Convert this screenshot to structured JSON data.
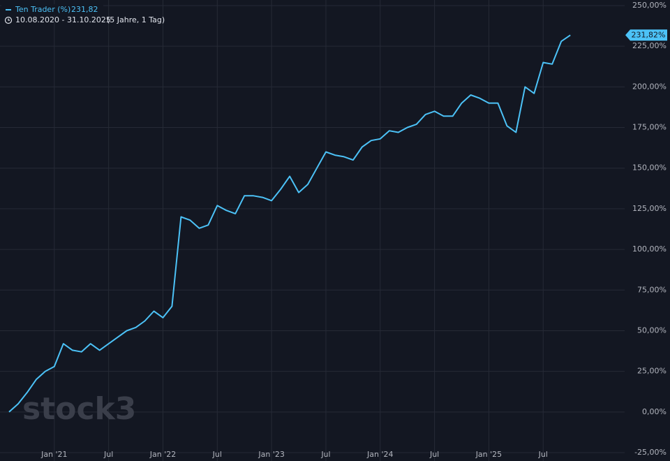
{
  "chart_data": {
    "type": "line",
    "series": [
      {
        "name": "Ten Trader (%)",
        "color": "#4cc2f7",
        "values": [
          0,
          5,
          12,
          20,
          25,
          28,
          42,
          38,
          37,
          42,
          38,
          42,
          46,
          50,
          52,
          56,
          62,
          58,
          65,
          120,
          118,
          113,
          115,
          127,
          124,
          122,
          133,
          133,
          132,
          130,
          137,
          145,
          135,
          140,
          150,
          160,
          158,
          157,
          155,
          163,
          167,
          168,
          173,
          172,
          175,
          177,
          183,
          185,
          182,
          182,
          190,
          195,
          193,
          190,
          190,
          176,
          172,
          200,
          196,
          215,
          214,
          228,
          231.82
        ]
      }
    ],
    "x": [
      "2020-08",
      "2020-09",
      "2020-10",
      "2020-11",
      "2020-12",
      "2021-01",
      "2021-02",
      "2021-03",
      "2021-04",
      "2021-05",
      "2021-06",
      "2021-07",
      "2021-08",
      "2021-09",
      "2021-10",
      "2021-11",
      "2021-12",
      "2022-01",
      "2022-02",
      "2022-03",
      "2022-04",
      "2022-05",
      "2022-06",
      "2022-07",
      "2022-08",
      "2022-09",
      "2022-10",
      "2022-11",
      "2022-12",
      "2023-01",
      "2023-02",
      "2023-03",
      "2023-04",
      "2023-05",
      "2023-06",
      "2023-07",
      "2023-08",
      "2023-09",
      "2023-10",
      "2023-11",
      "2023-12",
      "2024-01",
      "2024-02",
      "2024-03",
      "2024-04",
      "2024-05",
      "2024-06",
      "2024-07",
      "2024-08",
      "2024-09",
      "2024-10",
      "2024-11",
      "2024-12",
      "2025-01",
      "2025-02",
      "2025-03",
      "2025-04",
      "2025-05",
      "2025-06",
      "2025-07",
      "2025-08",
      "2025-09",
      "2025-10"
    ],
    "xlim": [
      "2020-07",
      "2026-04"
    ],
    "xticks": [
      {
        "value": "2021-01",
        "label": "Jan '21"
      },
      {
        "value": "2021-07",
        "label": "Jul"
      },
      {
        "value": "2022-01",
        "label": "Jan '22"
      },
      {
        "value": "2022-07",
        "label": "Jul"
      },
      {
        "value": "2023-01",
        "label": "Jan '23"
      },
      {
        "value": "2023-07",
        "label": "Jul"
      },
      {
        "value": "2024-01",
        "label": "Jan '24"
      },
      {
        "value": "2024-07",
        "label": "Jul"
      },
      {
        "value": "2025-01",
        "label": "Jan '25"
      },
      {
        "value": "2025-07",
        "label": "Jul"
      }
    ],
    "ylim": [
      -25,
      250
    ],
    "yticks": [
      {
        "value": -25,
        "label": "-25,00%"
      },
      {
        "value": 0,
        "label": "0,00%"
      },
      {
        "value": 25,
        "label": "25,00%"
      },
      {
        "value": 50,
        "label": "50,00%"
      },
      {
        "value": 75,
        "label": "75,00%"
      },
      {
        "value": 100,
        "label": "100,00%"
      },
      {
        "value": 125,
        "label": "125,00%"
      },
      {
        "value": 150,
        "label": "150,00%"
      },
      {
        "value": 175,
        "label": "175,00%"
      },
      {
        "value": 200,
        "label": "200,00%"
      },
      {
        "value": 225,
        "label": "225,00%"
      },
      {
        "value": 250,
        "label": "250,00%"
      }
    ],
    "grid": true,
    "legend_value": "231,82",
    "last_value_label": "231,82%",
    "date_range": "10.08.2020 - 31.10.2025",
    "period": "(5 Jahre, 1 Tag)",
    "watermark": "stock3"
  }
}
